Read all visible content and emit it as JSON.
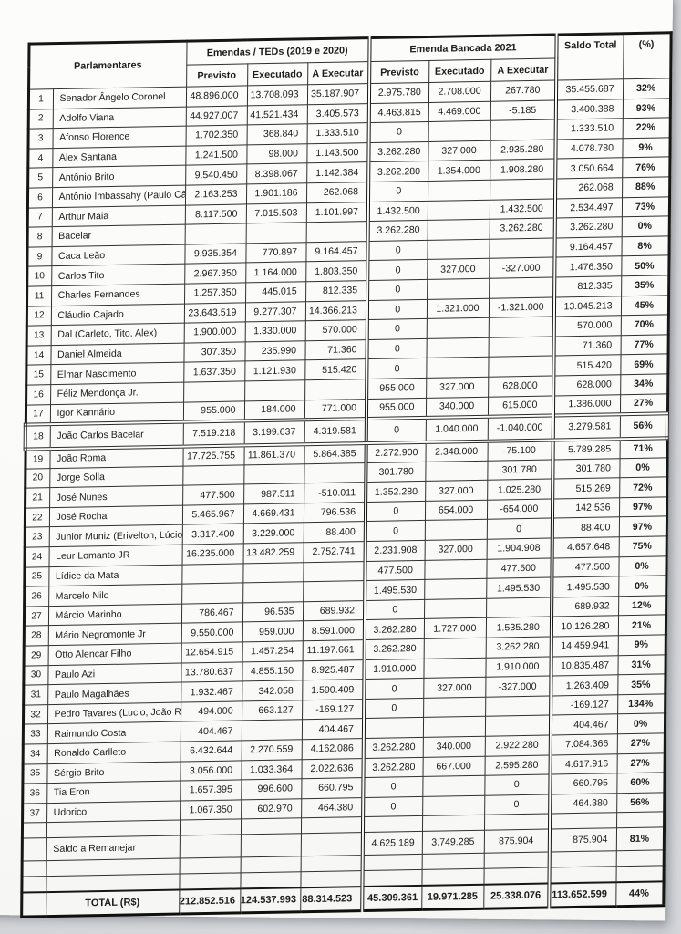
{
  "colors": {
    "backdrop": "#d5d7db",
    "page_bg": "#fbfbf9",
    "border": "#161616",
    "text": "#1c1c1c"
  },
  "table": {
    "header": {
      "parlamentares": "Parlamentares",
      "group1": "Emendas  /  TEDs (2019 e 2020)",
      "group2": "Emenda Bancada 2021",
      "saldo": "Saldo Total",
      "pct": "(%)",
      "sub": [
        "Previsto",
        "Executado",
        "A Executar"
      ]
    },
    "body_rows": [
      {
        "kind": "data",
        "n": "1",
        "name": "Senador Ângelo Coronel",
        "p1": "48.896.000",
        "e1": "13.708.093",
        "a1": "35.187.907",
        "p2": "2.975.780",
        "e2": "2.708.000",
        "a2": "267.780",
        "saldo": "35.455.687",
        "pct": "32%"
      },
      {
        "kind": "data",
        "n": "2",
        "name": "Adolfo Viana",
        "p1": "44.927.007",
        "e1": "41.521.434",
        "a1": "3.405.573",
        "p2": "4.463.815",
        "e2": "4.469.000",
        "a2": "-5.185",
        "saldo": "3.400.388",
        "pct": "93%"
      },
      {
        "kind": "data",
        "n": "3",
        "name": "Afonso Florence",
        "p1": "1.702.350",
        "e1": "368.840",
        "a1": "1.333.510",
        "p2": "0",
        "e2": "",
        "a2": "",
        "saldo": "1.333.510",
        "pct": "22%"
      },
      {
        "kind": "data",
        "n": "4",
        "name": "Alex Santana",
        "p1": "1.241.500",
        "e1": "98.000",
        "a1": "1.143.500",
        "p2": "3.262.280",
        "e2": "327.000",
        "a2": "2.935.280",
        "saldo": "4.078.780",
        "pct": "9%"
      },
      {
        "kind": "data",
        "n": "5",
        "name": "Antônio Brito",
        "p1": "9.540.450",
        "e1": "8.398.067",
        "a1": "1.142.384",
        "p2": "3.262.280",
        "e2": "1.354.000",
        "a2": "1.908.280",
        "saldo": "3.050.664",
        "pct": "76%"
      },
      {
        "kind": "data",
        "n": "6",
        "name": "Antônio Imbassahy (Paulo Câmara)",
        "p1": "2.163.253",
        "e1": "1.901.186",
        "a1": "262.068",
        "p2": "0",
        "e2": "",
        "a2": "",
        "saldo": "262.068",
        "pct": "88%"
      },
      {
        "kind": "data",
        "n": "7",
        "name": "Arthur Maia",
        "p1": "8.117.500",
        "e1": "7.015.503",
        "a1": "1.101.997",
        "p2": "1.432.500",
        "e2": "",
        "a2": "1.432.500",
        "saldo": "2.534.497",
        "pct": "73%"
      },
      {
        "kind": "data",
        "n": "8",
        "name": "Bacelar",
        "p1": "",
        "e1": "",
        "a1": "",
        "p2": "3.262.280",
        "e2": "",
        "a2": "3.262.280",
        "saldo": "3.262.280",
        "pct": "0%"
      },
      {
        "kind": "data",
        "n": "9",
        "name": "Caca Leão",
        "p1": "9.935.354",
        "e1": "770.897",
        "a1": "9.164.457",
        "p2": "0",
        "e2": "",
        "a2": "",
        "saldo": "9.164.457",
        "pct": "8%"
      },
      {
        "kind": "data",
        "n": "10",
        "name": "Carlos Tito",
        "p1": "2.967.350",
        "e1": "1.164.000",
        "a1": "1.803.350",
        "p2": "0",
        "e2": "327.000",
        "a2": "-327.000",
        "saldo": "1.476.350",
        "pct": "50%"
      },
      {
        "kind": "data",
        "n": "11",
        "name": "Charles Fernandes",
        "p1": "1.257.350",
        "e1": "445.015",
        "a1": "812.335",
        "p2": "0",
        "e2": "",
        "a2": "",
        "saldo": "812.335",
        "pct": "35%"
      },
      {
        "kind": "data",
        "n": "12",
        "name": "Cláudio Cajado",
        "p1": "23.643.519",
        "e1": "9.277.307",
        "a1": "14.366.213",
        "p2": "0",
        "e2": "1.321.000",
        "a2": "-1.321.000",
        "saldo": "13.045.213",
        "pct": "45%"
      },
      {
        "kind": "data",
        "n": "13",
        "name": "Dal (Carleto, Tito, Alex)",
        "p1": "1.900.000",
        "e1": "1.330.000",
        "a1": "570.000",
        "p2": "0",
        "e2": "",
        "a2": "",
        "saldo": "570.000",
        "pct": "70%"
      },
      {
        "kind": "data",
        "n": "14",
        "name": "Daniel Almeida",
        "p1": "307.350",
        "e1": "235.990",
        "a1": "71.360",
        "p2": "0",
        "e2": "",
        "a2": "",
        "saldo": "71.360",
        "pct": "77%"
      },
      {
        "kind": "data",
        "n": "15",
        "name": "Elmar Nascimento",
        "p1": "1.637.350",
        "e1": "1.121.930",
        "a1": "515.420",
        "p2": "0",
        "e2": "",
        "a2": "",
        "saldo": "515.420",
        "pct": "69%"
      },
      {
        "kind": "data",
        "n": "16",
        "name": "Féliz Mendonça Jr.",
        "p1": "",
        "e1": "",
        "a1": "",
        "p2": "955.000",
        "e2": "327.000",
        "a2": "628.000",
        "saldo": "628.000",
        "pct": "34%"
      },
      {
        "kind": "data",
        "n": "17",
        "name": "Igor Kannário",
        "p1": "955.000",
        "e1": "184.000",
        "a1": "771.000",
        "p2": "955.000",
        "e2": "340.000",
        "a2": "615.000",
        "saldo": "1.386.000",
        "pct": "27%"
      },
      {
        "kind": "data",
        "n": "18",
        "name": "João Carlos Bacelar",
        "p1": "7.519.218",
        "e1": "3.199.637",
        "a1": "4.319.581",
        "p2": "0",
        "e2": "1.040.000",
        "a2": "-1.040.000",
        "saldo": "3.279.581",
        "pct": "56%",
        "highlight": true
      },
      {
        "kind": "data",
        "n": "19",
        "name": "João Roma",
        "p1": "17.725.755",
        "e1": "11.861.370",
        "a1": "5.864.385",
        "p2": "2.272.900",
        "e2": "2.348.000",
        "a2": "-75.100",
        "saldo": "5.789.285",
        "pct": "71%"
      },
      {
        "kind": "data",
        "n": "20",
        "name": "Jorge Solla",
        "p1": "",
        "e1": "",
        "a1": "",
        "p2": "301.780",
        "e2": "",
        "a2": "301.780",
        "saldo": "301.780",
        "pct": "0%"
      },
      {
        "kind": "data",
        "n": "21",
        "name": "José Nunes",
        "p1": "477.500",
        "e1": "987.511",
        "a1": "-510.011",
        "p2": "1.352.280",
        "e2": "327.000",
        "a2": "1.025.280",
        "saldo": "515.269",
        "pct": "72%"
      },
      {
        "kind": "data",
        "n": "22",
        "name": "José Rocha",
        "p1": "5.465.967",
        "e1": "4.669.431",
        "a1": "796.536",
        "p2": "0",
        "e2": "654.000",
        "a2": "-654.000",
        "saldo": "142.536",
        "pct": "97%"
      },
      {
        "kind": "data",
        "n": "23",
        "name": "Junior Muniz (Erivelton, Lúcio, Leur",
        "p1": "3.317.400",
        "e1": "3.229.000",
        "a1": "88.400",
        "p2": "0",
        "e2": "",
        "a2": "0",
        "saldo": "88.400",
        "pct": "97%"
      },
      {
        "kind": "data",
        "n": "24",
        "name": "Leur Lomanto JR",
        "p1": "16.235.000",
        "e1": "13.482.259",
        "a1": "2.752.741",
        "p2": "2.231.908",
        "e2": "327.000",
        "a2": "1.904.908",
        "saldo": "4.657.648",
        "pct": "75%"
      },
      {
        "kind": "data",
        "n": "25",
        "name": "Lídice da Mata",
        "p1": "",
        "e1": "",
        "a1": "",
        "p2": "477.500",
        "e2": "",
        "a2": "477.500",
        "saldo": "477.500",
        "pct": "0%"
      },
      {
        "kind": "data",
        "n": "26",
        "name": "Marcelo Nilo",
        "p1": "",
        "e1": "",
        "a1": "",
        "p2": "1.495.530",
        "e2": "",
        "a2": "1.495.530",
        "saldo": "1.495.530",
        "pct": "0%"
      },
      {
        "kind": "data",
        "n": "27",
        "name": "Márcio Marinho",
        "p1": "786.467",
        "e1": "96.535",
        "a1": "689.932",
        "p2": "0",
        "e2": "",
        "a2": "",
        "saldo": "689.932",
        "pct": "12%"
      },
      {
        "kind": "data",
        "n": "28",
        "name": "Mário Negromonte Jr",
        "p1": "9.550.000",
        "e1": "959.000",
        "a1": "8.591.000",
        "p2": "3.262.280",
        "e2": "1.727.000",
        "a2": "1.535.280",
        "saldo": "10.126.280",
        "pct": "21%"
      },
      {
        "kind": "data",
        "n": "29",
        "name": "Otto Alencar Filho",
        "p1": "12.654.915",
        "e1": "1.457.254",
        "a1": "11.197.661",
        "p2": "3.262.280",
        "e2": "",
        "a2": "3.262.280",
        "saldo": "14.459.941",
        "pct": "9%"
      },
      {
        "kind": "data",
        "n": "30",
        "name": "Paulo Azi",
        "p1": "13.780.637",
        "e1": "4.855.150",
        "a1": "8.925.487",
        "p2": "1.910.000",
        "e2": "",
        "a2": "1.910.000",
        "saldo": "10.835.487",
        "pct": "31%"
      },
      {
        "kind": "data",
        "n": "31",
        "name": "Paulo Magalhães",
        "p1": "1.932.467",
        "e1": "342.058",
        "a1": "1.590.409",
        "p2": "0",
        "e2": "327.000",
        "a2": "-327.000",
        "saldo": "1.263.409",
        "pct": "35%"
      },
      {
        "kind": "data",
        "n": "32",
        "name": "Pedro Tavares (Lucio, João Roma,",
        "p1": "494.000",
        "e1": "663.127",
        "a1": "-169.127",
        "p2": "0",
        "e2": "",
        "a2": "",
        "saldo": "-169.127",
        "pct": "134%"
      },
      {
        "kind": "data",
        "n": "33",
        "name": "Raimundo Costa",
        "p1": "404.467",
        "e1": "",
        "a1": "404.467",
        "p2": "",
        "e2": "",
        "a2": "",
        "saldo": "404.467",
        "pct": "0%"
      },
      {
        "kind": "data",
        "n": "34",
        "name": "Ronaldo Carlleto",
        "p1": "6.432.644",
        "e1": "2.270.559",
        "a1": "4.162.086",
        "p2": "3.262.280",
        "e2": "340.000",
        "a2": "2.922.280",
        "saldo": "7.084.366",
        "pct": "27%"
      },
      {
        "kind": "data",
        "n": "35",
        "name": "Sérgio Brito",
        "p1": "3.056.000",
        "e1": "1.033.364",
        "a1": "2.022.636",
        "p2": "3.262.280",
        "e2": "667.000",
        "a2": "2.595.280",
        "saldo": "4.617.916",
        "pct": "27%"
      },
      {
        "kind": "data",
        "n": "36",
        "name": "Tia Eron",
        "p1": "1.657.395",
        "e1": "996.600",
        "a1": "660.795",
        "p2": "0",
        "e2": "",
        "a2": "0",
        "saldo": "660.795",
        "pct": "60%"
      },
      {
        "kind": "data",
        "n": "37",
        "name": "Udorico",
        "p1": "1.067.350",
        "e1": "602.970",
        "a1": "464.380",
        "p2": "0",
        "e2": "",
        "a2": "0",
        "saldo": "464.380",
        "pct": "56%"
      },
      {
        "kind": "spacer",
        "n": "",
        "name": "",
        "p1": "",
        "e1": "",
        "a1": "",
        "p2": "",
        "e2": "",
        "a2": "",
        "saldo": "",
        "pct": ""
      },
      {
        "kind": "label",
        "n": "",
        "name": "Saldo a Remanejar",
        "p1": "",
        "e1": "",
        "a1": "",
        "p2": "4.625.189",
        "e2": "3.749.285",
        "a2": "875.904",
        "saldo": "875.904",
        "pct": "81%"
      },
      {
        "kind": "spacer",
        "n": "",
        "name": "",
        "p1": "",
        "e1": "",
        "a1": "",
        "p2": "",
        "e2": "",
        "a2": "",
        "saldo": "",
        "pct": ""
      },
      {
        "kind": "spacer",
        "n": "",
        "name": "",
        "p1": "",
        "e1": "",
        "a1": "",
        "p2": "",
        "e2": "",
        "a2": "",
        "saldo": "",
        "pct": ""
      },
      {
        "kind": "total",
        "n": "",
        "name": "TOTAL (R$)",
        "p1": "212.852.516",
        "e1": "124.537.993",
        "a1": "88.314.523",
        "p2": "45.309.361",
        "e2": "19.971.285",
        "a2": "25.338.076",
        "saldo": "113.652.599",
        "pct": "44%"
      }
    ]
  }
}
